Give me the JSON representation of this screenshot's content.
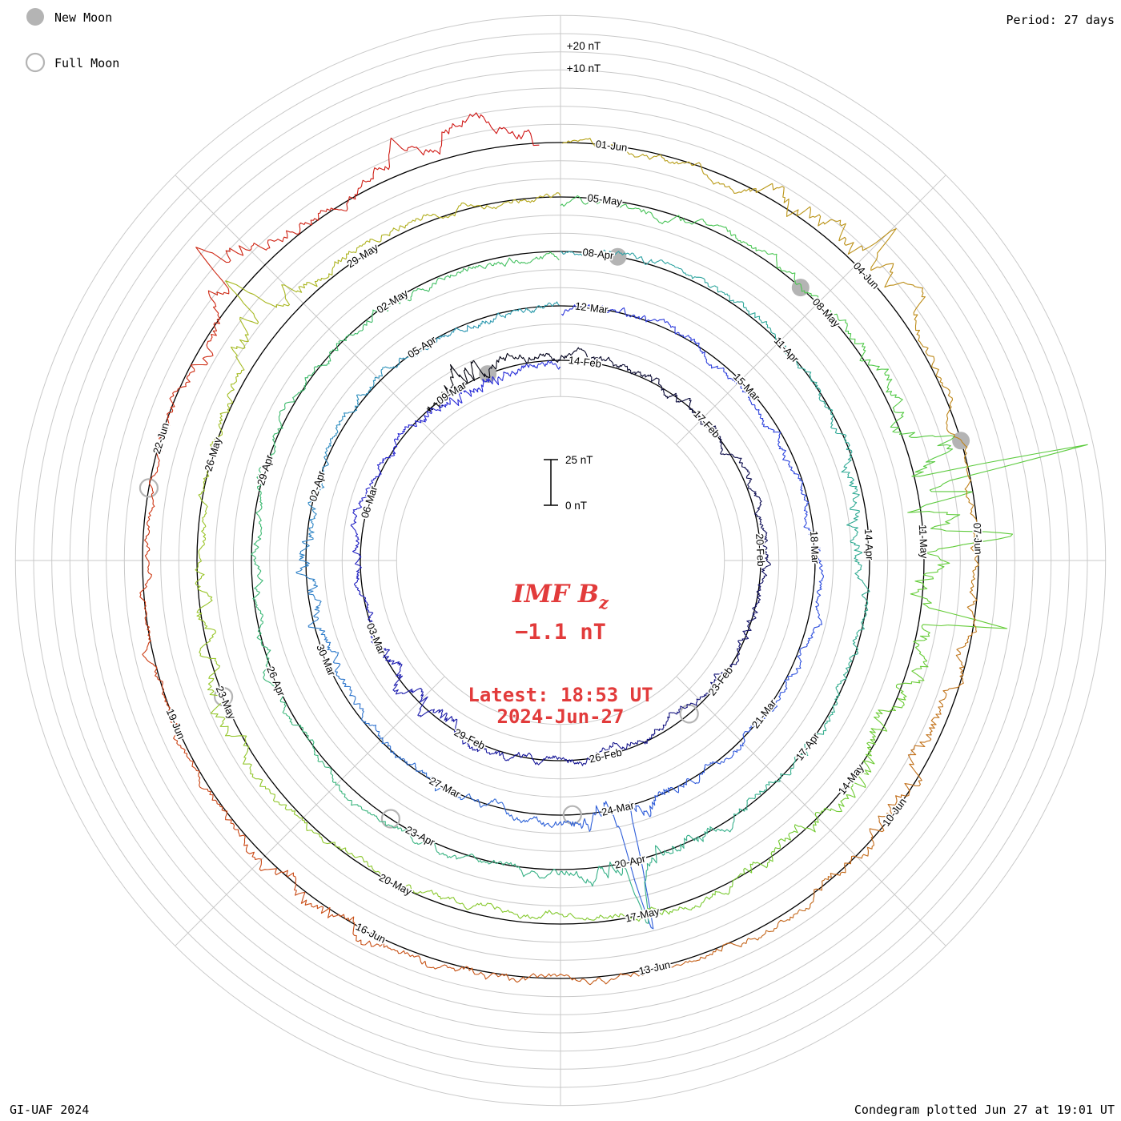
{
  "page": {
    "background": "#ffffff"
  },
  "legend": {
    "new_moon": {
      "label": "New Moon"
    },
    "full_moon": {
      "label": "Full Moon"
    }
  },
  "header": {
    "period": "Period: 27 days"
  },
  "footer": {
    "credit": "GI-UAF 2024",
    "plotted": "Condegram plotted Jun 27 at 19:01 UT"
  },
  "center": {
    "title_main": "IMF B",
    "title_sub": "z",
    "current_value": "−1.1 nT",
    "latest_time": "Latest: 18:53 UT",
    "latest_date": "2024-Jun-27",
    "text_color": "#e23b3b"
  },
  "scale_bar": {
    "top": "25 nT",
    "bottom": "0 nT"
  },
  "radial_labels": {
    "plus20": "+20 nT",
    "plus10": "+10 nT"
  },
  "colors": {
    "grid": "#c9c9c9",
    "baseline": "#000000",
    "moon": "#b4b4b4",
    "text": "#000000"
  },
  "chart_data": {
    "type": "line",
    "subtype": "polar-condegram",
    "title": "IMF Bz Condegram",
    "series_name": "IMF Bz (nT)",
    "period_days": 27,
    "rotation_start_dates": [
      "14-Feb",
      "12-Mar",
      "08-Apr",
      "05-May",
      "01-Jun"
    ],
    "date_range": {
      "start": "2024-Feb-11",
      "end": "2024-Jun-27 18:53 UT"
    },
    "latest_value_nT": -1.1,
    "radial_scale": {
      "nT_per_gridline": 10,
      "scale_bar_nT": 25,
      "positive_direction": "outward"
    },
    "day_offset_from": "2024-Feb-14",
    "ring_date_labels": [
      {
        "label": "14-Feb",
        "day": 0
      },
      {
        "label": "17-Feb",
        "day": 3
      },
      {
        "label": "20-Feb",
        "day": 6
      },
      {
        "label": "23-Feb",
        "day": 9
      },
      {
        "label": "26-Feb",
        "day": 12
      },
      {
        "label": "29-Feb",
        "day": 15
      },
      {
        "label": "03-Mar",
        "day": 18
      },
      {
        "label": "06-Mar",
        "day": 21
      },
      {
        "label": "09-Mar",
        "day": 24
      },
      {
        "label": "12-Mar",
        "day": 27
      },
      {
        "label": "15-Mar",
        "day": 30
      },
      {
        "label": "18-Mar",
        "day": 33
      },
      {
        "label": "21-Mar",
        "day": 36
      },
      {
        "label": "24-Mar",
        "day": 39
      },
      {
        "label": "27-Mar",
        "day": 42
      },
      {
        "label": "30-Mar",
        "day": 45
      },
      {
        "label": "02-Apr",
        "day": 48
      },
      {
        "label": "05-Apr",
        "day": 51
      },
      {
        "label": "08-Apr",
        "day": 54
      },
      {
        "label": "11-Apr",
        "day": 57
      },
      {
        "label": "14-Apr",
        "day": 60
      },
      {
        "label": "17-Apr",
        "day": 63
      },
      {
        "label": "20-Apr",
        "day": 66
      },
      {
        "label": "23-Apr",
        "day": 69
      },
      {
        "label": "26-Apr",
        "day": 72
      },
      {
        "label": "29-Apr",
        "day": 75
      },
      {
        "label": "02-May",
        "day": 78
      },
      {
        "label": "05-May",
        "day": 81
      },
      {
        "label": "08-May",
        "day": 84
      },
      {
        "label": "11-May",
        "day": 87
      },
      {
        "label": "14-May",
        "day": 90
      },
      {
        "label": "17-May",
        "day": 93
      },
      {
        "label": "20-May",
        "day": 96
      },
      {
        "label": "23-May",
        "day": 99
      },
      {
        "label": "26-May",
        "day": 102
      },
      {
        "label": "29-May",
        "day": 105
      },
      {
        "label": "01-Jun",
        "day": 108
      },
      {
        "label": "04-Jun",
        "day": 111
      },
      {
        "label": "07-Jun",
        "day": 114
      },
      {
        "label": "10-Jun",
        "day": 117
      },
      {
        "label": "13-Jun",
        "day": 120
      },
      {
        "label": "16-Jun",
        "day": 123
      },
      {
        "label": "19-Jun",
        "day": 126
      },
      {
        "label": "22-Jun",
        "day": 129
      }
    ],
    "moon_phases": {
      "new_moons": [
        {
          "date": "10-Mar",
          "day": 25.4
        },
        {
          "date": "08-Apr",
          "day": 54.8
        },
        {
          "date": "08-May",
          "day": 84.1
        },
        {
          "date": "06-Jun",
          "day": 113.5
        }
      ],
      "full_moons": [
        {
          "date": "24-Feb",
          "day": 10.5
        },
        {
          "date": "25-Mar",
          "day": 40.3
        },
        {
          "date": "23-Apr",
          "day": 70.0
        },
        {
          "date": "23-May",
          "day": 99.6
        },
        {
          "date": "22-Jun",
          "day": 129.0
        }
      ]
    },
    "disturbances": [
      {
        "date": "11-Feb",
        "day": -2.4,
        "width_days": 0.8,
        "activity": 2.2,
        "bias_nT": 4
      },
      {
        "date": "02-Mar",
        "day": 17.0,
        "width_days": 1.2,
        "activity": 1.2,
        "bias_nT": 0
      },
      {
        "date": "10-Mar",
        "day": 25.0,
        "width_days": 0.8,
        "activity": 1.0,
        "bias_nT": -3
      },
      {
        "date": "24-Mar",
        "day": 39.5,
        "width_days": 0.8,
        "activity": 2.6,
        "bias_nT": 5
      },
      {
        "date": "02-Apr",
        "day": 47.0,
        "width_days": 1.0,
        "activity": 1.2,
        "bias_nT": 0
      },
      {
        "date": "13-Apr",
        "day": 60.0,
        "width_days": 1.0,
        "activity": 1.1,
        "bias_nT": -3
      },
      {
        "date": "20-Apr",
        "day": 66.4,
        "width_days": 0.9,
        "activity": 2.0,
        "bias_nT": 6
      },
      {
        "date": "10-May",
        "day": 86.9,
        "width_days": 1.1,
        "activity": 4.2,
        "bias_nT": 6
      },
      {
        "date": "12-May",
        "day": 89.5,
        "width_days": 2.6,
        "activity": 2.0,
        "bias_nT": 0
      },
      {
        "date": "23-May",
        "day": 100.0,
        "width_days": 1.2,
        "activity": 1.2,
        "bias_nT": 3
      },
      {
        "date": "28-May",
        "day": 104.2,
        "width_days": 0.8,
        "activity": 2.2,
        "bias_nT": 8
      },
      {
        "date": "04-Jun",
        "day": 111.2,
        "width_days": 1.0,
        "activity": 2.4,
        "bias_nT": 6
      },
      {
        "date": "10-Jun",
        "day": 117.0,
        "width_days": 1.4,
        "activity": 1.4,
        "bias_nT": -3
      },
      {
        "date": "17-Jun",
        "day": 124.0,
        "width_days": 1.2,
        "activity": 1.5,
        "bias_nT": 3
      },
      {
        "date": "24-Jun",
        "day": 131.2,
        "width_days": 0.9,
        "activity": 2.6,
        "bias_nT": 8
      },
      {
        "date": "27-Jun",
        "day": 133.9,
        "width_days": 0.9,
        "activity": 1.8,
        "bias_nT": 14
      }
    ],
    "impulse_spikes": [
      {
        "day": 39.45,
        "width": 0.12,
        "nT": 75
      },
      {
        "day": 39.7,
        "width": 0.1,
        "nT": -20
      },
      {
        "day": 66.5,
        "width": 0.1,
        "nT": 22
      },
      {
        "day": 86.82,
        "width": 0.06,
        "nT": 92
      },
      {
        "day": 87.15,
        "width": 0.1,
        "nT": -28
      },
      {
        "day": 87.5,
        "width": 0.12,
        "nT": 42
      },
      {
        "day": 88.4,
        "width": 0.1,
        "nT": 34
      },
      {
        "day": 104.25,
        "width": 0.1,
        "nT": 30
      },
      {
        "day": 111.4,
        "width": 0.09,
        "nT": 26
      },
      {
        "day": 131.3,
        "width": 0.09,
        "nT": 28
      }
    ],
    "colormap_time_stops": [
      [
        -3.1,
        "#000000"
      ],
      [
        4,
        "#0c0c45"
      ],
      [
        14,
        "#191999"
      ],
      [
        24,
        "#2626d6"
      ],
      [
        33,
        "#2e49df"
      ],
      [
        41,
        "#2f62d8"
      ],
      [
        50,
        "#2f8fc0"
      ],
      [
        57,
        "#2fa89b"
      ],
      [
        68,
        "#38b286"
      ],
      [
        78,
        "#3fbc6a"
      ],
      [
        85,
        "#4cc84c"
      ],
      [
        88,
        "#62cc38"
      ],
      [
        95,
        "#85c92e"
      ],
      [
        102,
        "#9cc428"
      ],
      [
        107,
        "#b3ac1c"
      ],
      [
        111,
        "#bb9316"
      ],
      [
        116,
        "#c1761b"
      ],
      [
        122,
        "#c65817"
      ],
      [
        128,
        "#cd3a12"
      ],
      [
        134.8,
        "#d01515"
      ]
    ],
    "grid": true,
    "legend_position": "top-left"
  }
}
